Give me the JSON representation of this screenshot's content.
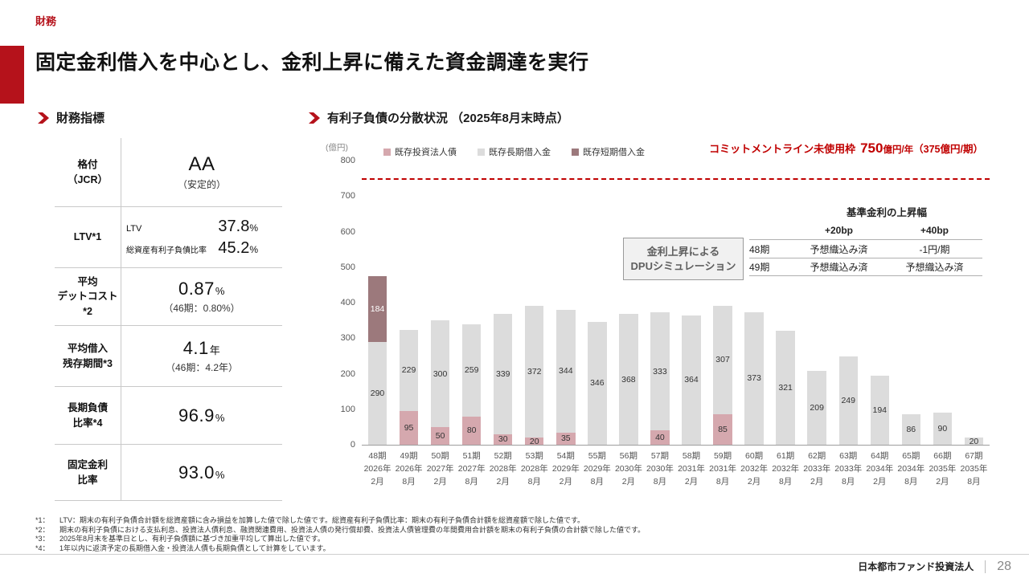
{
  "page": {
    "eyebrow": "財務",
    "title": "固定金利借入を中心とし、金利上昇に備えた資金調達を実行",
    "footer": {
      "company": "日本都市ファンド投資法人",
      "page_number": "28"
    }
  },
  "colors": {
    "brand_red": "#B5121B",
    "dash_red": "#C00000",
    "bond_segment": "#D5A8AE",
    "long_term_segment": "#DCDCDC",
    "short_term_segment": "#9C797C"
  },
  "indicators": {
    "heading": "財務指標",
    "rows": [
      {
        "label": "格付\n（JCR）",
        "main": "AA",
        "sub": "（安定的）"
      },
      {
        "label": "LTV*1",
        "lines": [
          {
            "name": "LTV",
            "value": "37.8",
            "unit": "%"
          },
          {
            "name": "総資産有利子負債比率",
            "value": "45.2",
            "unit": "%"
          }
        ]
      },
      {
        "label": "平均\nデットコスト*2",
        "value": "0.87",
        "unit": "%",
        "sub": "（46期：0.80%）"
      },
      {
        "label": "平均借入\n残存期間*3",
        "value": "4.1",
        "unit": "年",
        "sub": "（46期：4.2年）"
      },
      {
        "label": "長期負債\n比率*4",
        "value": "96.9",
        "unit": "%",
        "sub": ""
      },
      {
        "label": "固定金利\n比率",
        "value": "93.0",
        "unit": "%",
        "sub": ""
      }
    ]
  },
  "debt_section": {
    "heading": "有利子負債の分散状況 （2025年8月末時点）",
    "commitment": {
      "label": "コミットメントライン未使用枠",
      "value": "750",
      "unit": "億円/年",
      "paren": "（375億円/期）"
    },
    "dpu_box": "金利上昇による\nDPUシミュレーション",
    "rate_table": {
      "header": "基準金利の上昇幅",
      "columns": [
        "+20bp",
        "+40bp"
      ],
      "rows": [
        {
          "period": "48期",
          "plus20": "予想織込み済",
          "plus40": "-1円/期"
        },
        {
          "period": "49期",
          "plus20": "予想織込み済",
          "plus40": "予想織込み済"
        }
      ]
    }
  },
  "chart_data": {
    "type": "bar",
    "stacked": true,
    "title": "有利子負債の分散状況（2025年8月末時点）",
    "ylabel": "(億円)",
    "ylim": [
      0,
      800
    ],
    "yticks": [
      0,
      100,
      200,
      300,
      400,
      500,
      600,
      700,
      800
    ],
    "grid": false,
    "legend_position": "top",
    "reference_line": {
      "value": 750,
      "style": "dashed",
      "color": "#C00000",
      "label": "コミットメントライン未使用枠 750億円/年（375億円/期）"
    },
    "categories": [
      {
        "period": "48期",
        "year": "2026年",
        "month": "2月"
      },
      {
        "period": "49期",
        "year": "2026年",
        "month": "8月"
      },
      {
        "period": "50期",
        "year": "2027年",
        "month": "2月"
      },
      {
        "period": "51期",
        "year": "2027年",
        "month": "8月"
      },
      {
        "period": "52期",
        "year": "2028年",
        "month": "2月"
      },
      {
        "period": "53期",
        "year": "2028年",
        "month": "8月"
      },
      {
        "period": "54期",
        "year": "2029年",
        "month": "2月"
      },
      {
        "period": "55期",
        "year": "2029年",
        "month": "8月"
      },
      {
        "period": "56期",
        "year": "2030年",
        "month": "2月"
      },
      {
        "period": "57期",
        "year": "2030年",
        "month": "8月"
      },
      {
        "period": "58期",
        "year": "2031年",
        "month": "2月"
      },
      {
        "period": "59期",
        "year": "2031年",
        "month": "8月"
      },
      {
        "period": "60期",
        "year": "2032年",
        "month": "2月"
      },
      {
        "period": "61期",
        "year": "2032年",
        "month": "8月"
      },
      {
        "period": "62期",
        "year": "2033年",
        "month": "2月"
      },
      {
        "period": "63期",
        "year": "2033年",
        "month": "8月"
      },
      {
        "period": "64期",
        "year": "2034年",
        "month": "2月"
      },
      {
        "period": "65期",
        "year": "2034年",
        "month": "8月"
      },
      {
        "period": "66期",
        "year": "2035年",
        "month": "2月"
      },
      {
        "period": "67期",
        "year": "2035年",
        "month": "8月"
      }
    ],
    "series": [
      {
        "name": "既存投資法人債",
        "color": "#D5A8AE",
        "label_color": "#333333",
        "values": [
          0,
          95,
          50,
          80,
          30,
          20,
          35,
          0,
          0,
          40,
          0,
          85,
          0,
          0,
          0,
          0,
          0,
          0,
          0,
          0
        ]
      },
      {
        "name": "既存長期借入金",
        "color": "#DCDCDC",
        "label_color": "#333333",
        "values": [
          290,
          229,
          300,
          259,
          339,
          372,
          344,
          346,
          368,
          333,
          364,
          307,
          373,
          321,
          209,
          249,
          194,
          86,
          90,
          20
        ]
      },
      {
        "name": "既存短期借入金",
        "color": "#9C797C",
        "label_color": "#ffffff",
        "values": [
          184,
          0,
          0,
          0,
          0,
          0,
          0,
          0,
          0,
          0,
          0,
          0,
          0,
          0,
          0,
          0,
          0,
          0,
          0,
          0
        ]
      }
    ]
  },
  "footnotes": [
    {
      "marker": "*1：",
      "text": "LTV：期末の有利子負債合計額を総資産額に含み損益を加算した値で除した値です。総資産有利子負債比率：期末の有利子負債合計額を総資産額で除した値です。"
    },
    {
      "marker": "*2：",
      "text": "期末の有利子負債における支払利息、投資法人債利息、融資関連費用、投資法人債の発行償却費、投資法人債管理費の年間費用合計額を期末の有利子負債の合計額で除した値です。"
    },
    {
      "marker": "*3：",
      "text": "2025年8月末を基準日とし、有利子負債額に基づき加重平均して算出した値です。"
    },
    {
      "marker": "*4：",
      "text": "1年以内に返済予定の長期借入金・投資法人債も長期負債として計算をしています。"
    }
  ]
}
